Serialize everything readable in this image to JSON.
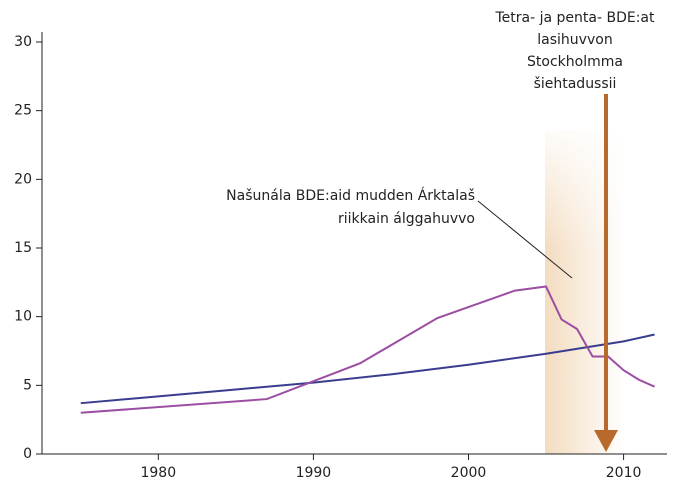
{
  "chart_data": {
    "type": "line",
    "series": [
      {
        "name": "Blue line",
        "color": "#3a3d8f",
        "x": [
          1975,
          1980,
          1985,
          1990,
          1995,
          2000,
          2005,
          2010,
          2012
        ],
        "values": [
          3.7,
          4.2,
          4.7,
          5.2,
          5.8,
          6.5,
          7.3,
          8.2,
          8.7
        ]
      },
      {
        "name": "Purple line",
        "color": "#9c4ea2",
        "x": [
          1975,
          1987,
          1993,
          1998,
          2003,
          2005,
          2006,
          2007,
          2008,
          2009,
          2010,
          2011,
          2012
        ],
        "values": [
          3.0,
          4.0,
          6.6,
          9.9,
          11.9,
          12.2,
          9.8,
          9.1,
          7.1,
          7.1,
          6.1,
          5.4,
          4.9
        ]
      }
    ],
    "xlim": [
      1972.5,
      2012.8
    ],
    "xticks": [
      1980,
      1990,
      2000,
      2010
    ],
    "ylim": [
      0,
      30
    ],
    "yticks": [
      0,
      5,
      10,
      15,
      20,
      25,
      30
    ],
    "annotations": [
      "Tetra- ja penta- BDE:at",
      "lasihuvvon",
      "Stockholmma",
      "šiehtadussii",
      "Našunála BDE:aid mudden Árktalaš",
      "riikkain álggahuvvo"
    ]
  }
}
